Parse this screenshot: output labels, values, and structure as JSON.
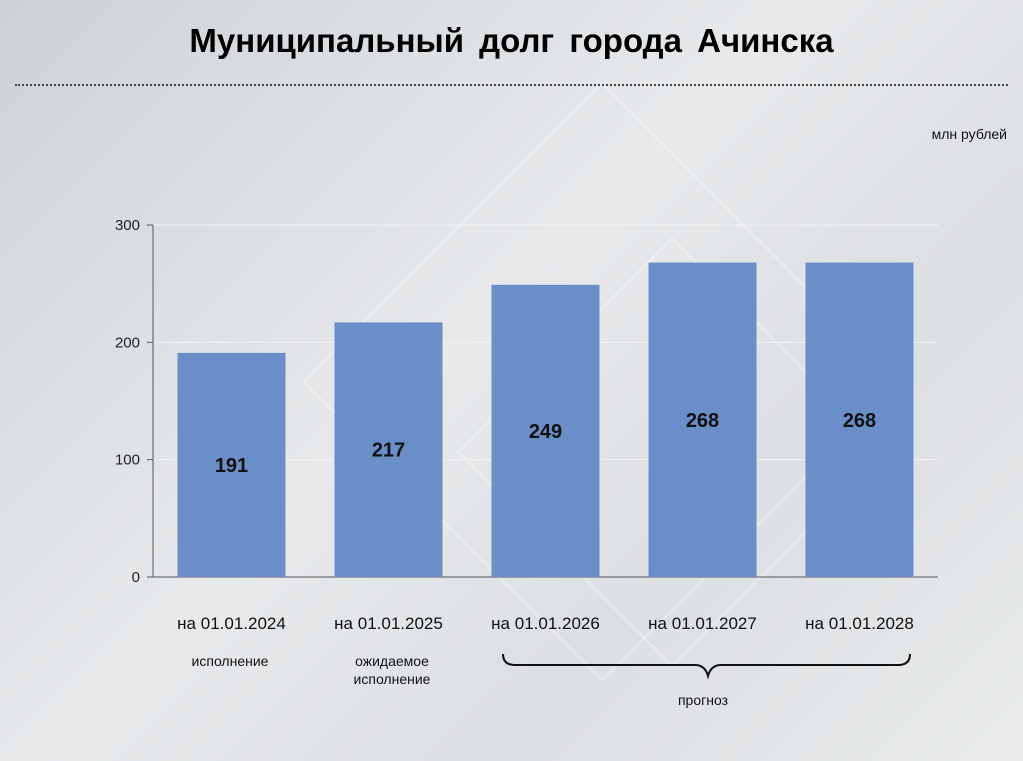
{
  "title": "Муниципальный  долг  города Ачинска",
  "unit_label": "млн рублей",
  "notes": {
    "actual": "исполнение",
    "expected": "ожидаемое исполнение",
    "forecast": "прогноз"
  },
  "chart_data": {
    "type": "bar",
    "title": "Муниципальный  долг  города Ачинска",
    "categories": [
      "на 01.01.2024",
      "на 01.01.2025",
      "на 01.01.2026",
      "на 01.01.2027",
      "на 01.01.2028"
    ],
    "values": [
      191,
      217,
      249,
      268,
      268
    ],
    "data_labels": [
      "191",
      "217",
      "249",
      "268",
      "268"
    ],
    "ylabel": "млн рублей",
    "ylim": [
      0,
      300
    ],
    "yticks": [
      0,
      100,
      200,
      300
    ],
    "bar_color": "#6a8fc8",
    "grid": true,
    "legend": "none"
  }
}
